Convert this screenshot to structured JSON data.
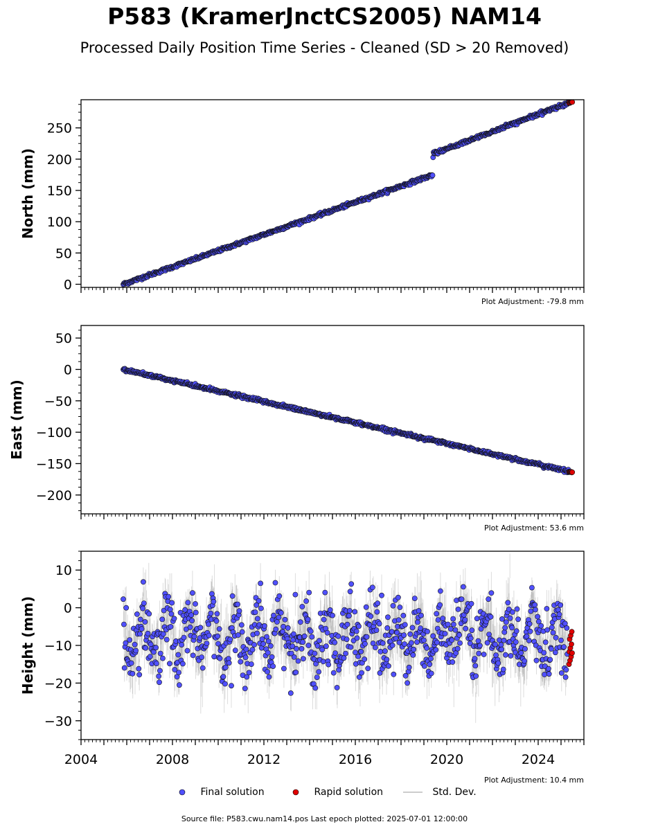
{
  "title": "P583 (KramerJnctCS2005) NAM14",
  "subtitle": "Processed Daily Position Time Series - Cleaned (SD > 20 Removed)",
  "legend": {
    "final": "Final solution",
    "rapid": "Rapid solution",
    "std": "Std. Dev."
  },
  "footer": "Source file: P583.cwu.nam14.pos  Last epoch plotted: 2025-07-01 12:00:00",
  "colors": {
    "final": "#5050ff",
    "rapid": "#e00000",
    "std": "#808080",
    "edge": "#000000"
  },
  "chart_data": [
    {
      "type": "scatter",
      "ylabel": "North (mm)",
      "note": "Plot Adjustment: -79.8 mm",
      "xlim": [
        2004,
        2026
      ],
      "ylim": [
        -5,
        295
      ],
      "yticks": [
        0,
        50,
        100,
        150,
        200,
        250
      ],
      "yticklabels": [
        "0",
        "50",
        "100",
        "150",
        "200",
        "250"
      ],
      "series": [
        {
          "name": "Final solution",
          "trend": [
            [
              2005.85,
              0
            ],
            [
              2019.4,
              175
            ],
            [
              2019.4,
              208
            ],
            [
              2025.4,
              291
            ]
          ],
          "scatter": 1.2
        },
        {
          "name": "Rapid solution",
          "trend": [
            [
              2025.35,
              290
            ],
            [
              2025.5,
              292
            ]
          ],
          "scatter": 0.5
        }
      ]
    },
    {
      "type": "scatter",
      "ylabel": "East (mm)",
      "note": "Plot Adjustment: 53.6 mm",
      "xlim": [
        2004,
        2026
      ],
      "ylim": [
        -230,
        70
      ],
      "yticks": [
        50,
        0,
        -50,
        -100,
        -150,
        -200
      ],
      "yticklabels": [
        "50",
        "0",
        "−50",
        "−100",
        "−150",
        "−200"
      ],
      "series": [
        {
          "name": "Final solution",
          "trend": [
            [
              2005.85,
              0
            ],
            [
              2025.4,
              -163
            ]
          ],
          "scatter": 1.2
        },
        {
          "name": "Rapid solution",
          "trend": [
            [
              2025.35,
              -163
            ],
            [
              2025.5,
              -164
            ]
          ],
          "scatter": 0.4
        }
      ]
    },
    {
      "type": "scatter",
      "ylabel": "Height (mm)",
      "note": "Plot Adjustment: 10.4 mm",
      "xlim": [
        2004,
        2026
      ],
      "ylim": [
        -35,
        15
      ],
      "yticks": [
        10,
        0,
        -10,
        -20,
        -30
      ],
      "yticklabels": [
        "10",
        "0",
        "−10",
        "−20",
        "−30"
      ],
      "xticks": [
        2004,
        2008,
        2012,
        2016,
        2020,
        2024
      ],
      "xticklabels": [
        "2004",
        "2008",
        "2012",
        "2016",
        "2020",
        "2024"
      ],
      "series": [
        {
          "name": "Final solution",
          "mean": -8,
          "annual_amplitude": 5,
          "scatter": 4.5,
          "range": [
            2005.85,
            2025.3
          ]
        },
        {
          "name": "Rapid solution",
          "values_range": [
            -15,
            -6
          ],
          "range": [
            2025.35,
            2025.5
          ]
        },
        {
          "name": "Std. Dev.",
          "half_width": 4
        }
      ]
    }
  ]
}
